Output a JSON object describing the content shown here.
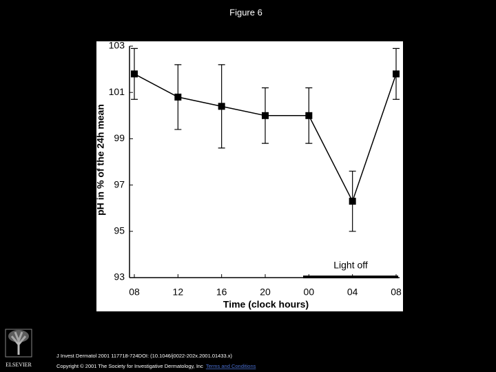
{
  "slide_title": "Figure 6",
  "chart_data": {
    "type": "line",
    "xlabel": "Time (clock hours)",
    "ylabel": "pH in % of the 24h mean",
    "categories": [
      "08",
      "12",
      "16",
      "20",
      "00",
      "04",
      "08"
    ],
    "values": [
      101.8,
      100.8,
      100.4,
      100.0,
      100.0,
      96.3,
      101.8
    ],
    "errors": [
      1.1,
      1.4,
      1.8,
      1.2,
      1.2,
      1.3,
      1.1
    ],
    "color": "#000000",
    "ylim": [
      93,
      103
    ],
    "yticks": [
      93,
      95,
      97,
      99,
      101,
      103
    ],
    "annotation": "Light off"
  },
  "footer": {
    "logo": "ELSEVIER",
    "citation": "J Invest Dermatol 2001 117718-724DOI: (10.1046/j0022-202x.2001.01433.x)",
    "copyright": "Copyright © 2001 The Society for Investigative Dermatology, Inc",
    "link": "Terms and Conditions"
  }
}
